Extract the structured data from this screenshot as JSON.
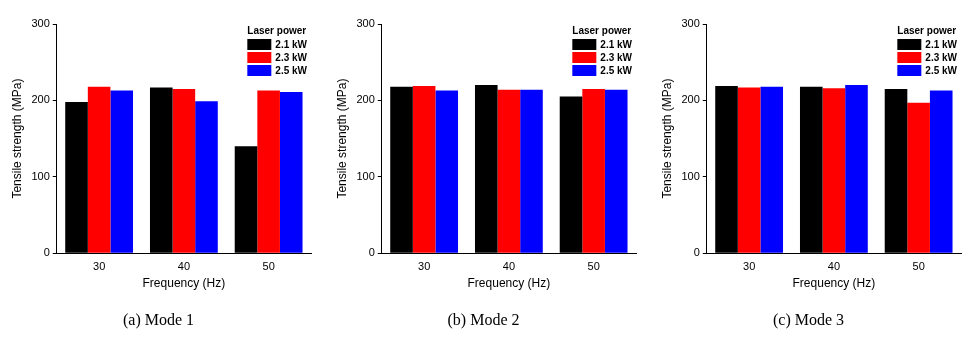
{
  "chart_data": [
    {
      "type": "bar",
      "title": "(a) Mode 1",
      "x_label": "Frequency (Hz)",
      "y_label": "Tensile strength (MPa)",
      "categories": [
        "30",
        "40",
        "50"
      ],
      "series": [
        {
          "name": "2.1 kW",
          "color": "#000000",
          "values": [
            198,
            217,
            140
          ]
        },
        {
          "name": "2.3 kW",
          "color": "#ff0000",
          "values": [
            218,
            215,
            213
          ]
        },
        {
          "name": "2.5 kW",
          "color": "#0000ff",
          "values": [
            213,
            199,
            211
          ]
        }
      ],
      "legend_title": "Laser power",
      "legend": "upper right",
      "ylim": [
        0,
        300
      ],
      "yticks": [
        0,
        100,
        200,
        300
      ],
      "grid": false
    },
    {
      "type": "bar",
      "title": "(b) Mode 2",
      "x_label": "Frequency (Hz)",
      "y_label": "Tensile strength (MPa)",
      "categories": [
        "30",
        "40",
        "50"
      ],
      "series": [
        {
          "name": "2.1 kW",
          "color": "#000000",
          "values": [
            218,
            220,
            205
          ]
        },
        {
          "name": "2.3 kW",
          "color": "#ff0000",
          "values": [
            219,
            214,
            215
          ]
        },
        {
          "name": "2.5 kW",
          "color": "#0000ff",
          "values": [
            213,
            214,
            214
          ]
        }
      ],
      "legend_title": "Laser power",
      "legend": "upper right",
      "ylim": [
        0,
        300
      ],
      "yticks": [
        0,
        100,
        200,
        300
      ],
      "grid": false
    },
    {
      "type": "bar",
      "title": "(c) Mode 3",
      "x_label": "Frequency (Hz)",
      "y_label": "Tensile strength (MPa)",
      "categories": [
        "30",
        "40",
        "50"
      ],
      "series": [
        {
          "name": "2.1 kW",
          "color": "#000000",
          "values": [
            219,
            218,
            215
          ]
        },
        {
          "name": "2.3 kW",
          "color": "#ff0000",
          "values": [
            217,
            216,
            197
          ]
        },
        {
          "name": "2.5 kW",
          "color": "#0000ff",
          "values": [
            218,
            220,
            213
          ]
        }
      ],
      "legend_title": "Laser power",
      "legend": "upper right",
      "ylim": [
        0,
        300
      ],
      "yticks": [
        0,
        100,
        200,
        300
      ],
      "grid": false
    }
  ]
}
